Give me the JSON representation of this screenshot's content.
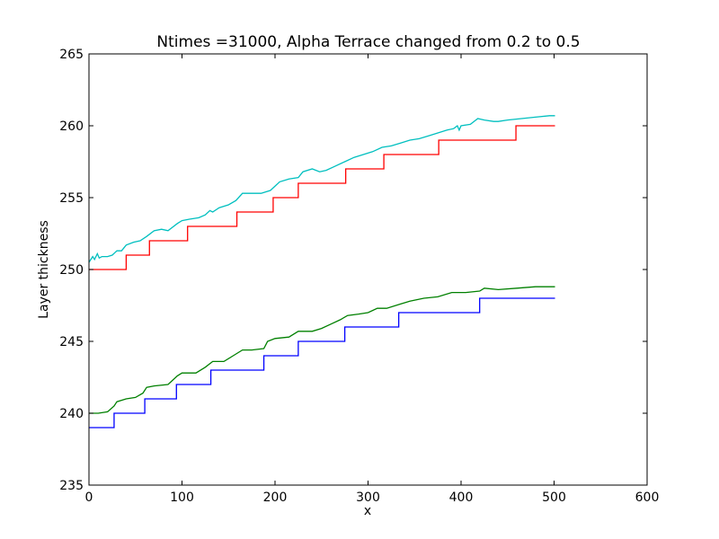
{
  "chart_data": {
    "type": "line",
    "title": "Ntimes =31000, Alpha Terrace  changed from 0.2 to 0.5",
    "xlabel": "x",
    "ylabel": "Layer thickness",
    "xlim": [
      0,
      600
    ],
    "ylim": [
      235,
      265
    ],
    "xticks": [
      "0",
      "100",
      "200",
      "300",
      "400",
      "500",
      "600"
    ],
    "yticks": [
      "235",
      "240",
      "245",
      "250",
      "255",
      "260",
      "265"
    ],
    "grid": false,
    "legend": "none",
    "series": [
      {
        "color": "#0000ff",
        "step": true,
        "points": [
          [
            0,
            239
          ],
          [
            27,
            239
          ],
          [
            27,
            240
          ],
          [
            60,
            240
          ],
          [
            60,
            241
          ],
          [
            94,
            241
          ],
          [
            94,
            242
          ],
          [
            131,
            242
          ],
          [
            131,
            243
          ],
          [
            188,
            243
          ],
          [
            188,
            244
          ],
          [
            225,
            244
          ],
          [
            225,
            245
          ],
          [
            275,
            245
          ],
          [
            275,
            246
          ],
          [
            333,
            246
          ],
          [
            333,
            247
          ],
          [
            420,
            247
          ],
          [
            420,
            248
          ],
          [
            501,
            248
          ]
        ]
      },
      {
        "color": "#008000",
        "step": false,
        "points": [
          [
            0,
            240.0
          ],
          [
            10,
            240.0
          ],
          [
            20,
            240.1
          ],
          [
            27,
            240.5
          ],
          [
            30,
            240.8
          ],
          [
            40,
            241.0
          ],
          [
            50,
            241.1
          ],
          [
            58,
            241.4
          ],
          [
            62,
            241.8
          ],
          [
            70,
            241.9
          ],
          [
            85,
            242.0
          ],
          [
            95,
            242.6
          ],
          [
            100,
            242.8
          ],
          [
            115,
            242.8
          ],
          [
            125,
            243.2
          ],
          [
            133,
            243.6
          ],
          [
            145,
            243.6
          ],
          [
            155,
            244.0
          ],
          [
            165,
            244.4
          ],
          [
            175,
            244.4
          ],
          [
            188,
            244.5
          ],
          [
            192,
            245.0
          ],
          [
            200,
            245.2
          ],
          [
            215,
            245.3
          ],
          [
            225,
            245.7
          ],
          [
            240,
            245.7
          ],
          [
            250,
            245.9
          ],
          [
            260,
            246.2
          ],
          [
            270,
            246.5
          ],
          [
            278,
            246.8
          ],
          [
            290,
            246.9
          ],
          [
            300,
            247.0
          ],
          [
            310,
            247.3
          ],
          [
            320,
            247.3
          ],
          [
            335,
            247.6
          ],
          [
            345,
            247.8
          ],
          [
            360,
            248.0
          ],
          [
            375,
            248.1
          ],
          [
            390,
            248.4
          ],
          [
            405,
            248.4
          ],
          [
            420,
            248.5
          ],
          [
            425,
            248.7
          ],
          [
            440,
            248.6
          ],
          [
            460,
            248.7
          ],
          [
            480,
            248.8
          ],
          [
            501,
            248.8
          ]
        ]
      },
      {
        "color": "#ff0000",
        "step": true,
        "points": [
          [
            0,
            250
          ],
          [
            40,
            250
          ],
          [
            40,
            251
          ],
          [
            65,
            251
          ],
          [
            65,
            252
          ],
          [
            106,
            252
          ],
          [
            106,
            253
          ],
          [
            159,
            253
          ],
          [
            159,
            254
          ],
          [
            198,
            254
          ],
          [
            198,
            255
          ],
          [
            225,
            255
          ],
          [
            225,
            256
          ],
          [
            276,
            256
          ],
          [
            276,
            257
          ],
          [
            317,
            257
          ],
          [
            317,
            258
          ],
          [
            376,
            258
          ],
          [
            376,
            259
          ],
          [
            459,
            259
          ],
          [
            459,
            260
          ],
          [
            501,
            260
          ]
        ]
      },
      {
        "color": "#00bfbf",
        "step": false,
        "points": [
          [
            0,
            250.5
          ],
          [
            4,
            250.9
          ],
          [
            6,
            250.7
          ],
          [
            9,
            251.1
          ],
          [
            11,
            250.8
          ],
          [
            14,
            250.9
          ],
          [
            20,
            250.9
          ],
          [
            25,
            251.0
          ],
          [
            30,
            251.3
          ],
          [
            35,
            251.3
          ],
          [
            40,
            251.7
          ],
          [
            48,
            251.9
          ],
          [
            55,
            252.0
          ],
          [
            62,
            252.3
          ],
          [
            70,
            252.7
          ],
          [
            78,
            252.8
          ],
          [
            85,
            252.7
          ],
          [
            95,
            253.2
          ],
          [
            100,
            253.4
          ],
          [
            108,
            253.5
          ],
          [
            118,
            253.6
          ],
          [
            125,
            253.8
          ],
          [
            130,
            254.1
          ],
          [
            133,
            254.0
          ],
          [
            140,
            254.3
          ],
          [
            150,
            254.5
          ],
          [
            158,
            254.8
          ],
          [
            165,
            255.3
          ],
          [
            175,
            255.3
          ],
          [
            185,
            255.3
          ],
          [
            195,
            255.5
          ],
          [
            205,
            256.1
          ],
          [
            215,
            256.3
          ],
          [
            225,
            256.4
          ],
          [
            230,
            256.8
          ],
          [
            240,
            257.0
          ],
          [
            248,
            256.8
          ],
          [
            255,
            256.9
          ],
          [
            265,
            257.2
          ],
          [
            275,
            257.5
          ],
          [
            285,
            257.8
          ],
          [
            295,
            258.0
          ],
          [
            305,
            258.2
          ],
          [
            315,
            258.5
          ],
          [
            325,
            258.6
          ],
          [
            335,
            258.8
          ],
          [
            345,
            259.0
          ],
          [
            355,
            259.1
          ],
          [
            365,
            259.3
          ],
          [
            375,
            259.5
          ],
          [
            385,
            259.7
          ],
          [
            392,
            259.8
          ],
          [
            396,
            260.0
          ],
          [
            398,
            259.7
          ],
          [
            400,
            260.0
          ],
          [
            410,
            260.1
          ],
          [
            418,
            260.5
          ],
          [
            425,
            260.4
          ],
          [
            435,
            260.3
          ],
          [
            440,
            260.3
          ],
          [
            450,
            260.4
          ],
          [
            465,
            260.5
          ],
          [
            480,
            260.6
          ],
          [
            495,
            260.7
          ],
          [
            501,
            260.7
          ]
        ]
      }
    ]
  }
}
